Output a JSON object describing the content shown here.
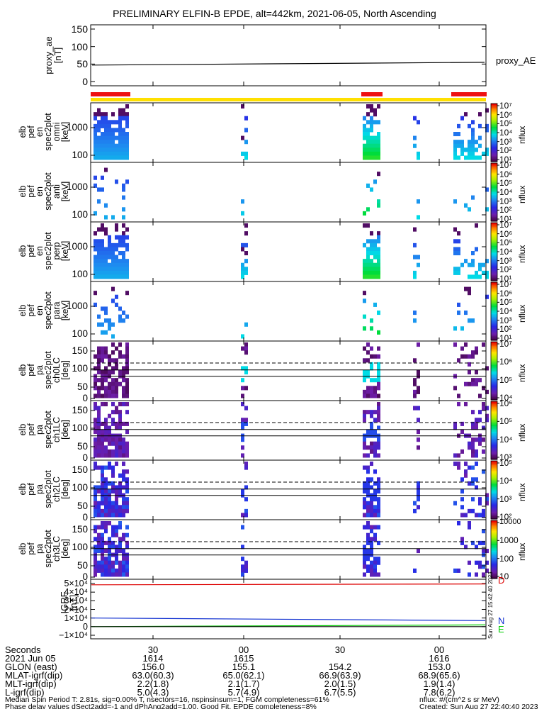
{
  "title": "PRELIMINARY ELFIN-B EPDE, alt=442km, 2021-06-05, North Ascending",
  "proxy_panel": {
    "ylabel_lines": [
      "proxy_ae",
      "[nT]"
    ],
    "yticks": [
      "150",
      "100",
      "50",
      "0"
    ],
    "legend": "proxy_AE",
    "ylim": [
      0,
      150
    ],
    "line_value_start": 47,
    "line_value_end": 55
  },
  "panels": [
    {
      "ylabel_lines": [
        "elb",
        "pef",
        "en",
        "spec2plot",
        "omni",
        "[keV]"
      ],
      "yticks": [
        "1000",
        "100"
      ],
      "cbar": "nflux"
    },
    {
      "ylabel_lines": [
        "elb",
        "pef",
        "en",
        "spec2plot",
        "anti",
        "[keV]"
      ],
      "yticks": [
        "1000",
        "100"
      ],
      "cbar": "nflux"
    },
    {
      "ylabel_lines": [
        "elb",
        "pef",
        "en",
        "spec2plot",
        "perp",
        "[keV]"
      ],
      "yticks": [
        "1000",
        "100"
      ],
      "cbar": "nflux"
    },
    {
      "ylabel_lines": [
        "elb",
        "pef",
        "en",
        "spec2plot",
        "para",
        "[keV]"
      ],
      "yticks": [
        "1000",
        "100"
      ],
      "cbar": "nflux"
    },
    {
      "ylabel_lines": [
        "elb",
        "pef",
        "pa",
        "spec2plot",
        "ch0LC",
        "[deg]"
      ],
      "yticks": [
        "150",
        "100",
        "50",
        "0"
      ],
      "cbar": "nflux"
    },
    {
      "ylabel_lines": [
        "elb",
        "pef",
        "pa",
        "spec2plot",
        "ch1LC",
        "[deg]"
      ],
      "yticks": [
        "150",
        "100",
        "50",
        "0"
      ],
      "cbar": "nflux"
    },
    {
      "ylabel_lines": [
        "elb",
        "pef",
        "pa",
        "spec2plot",
        "ch2LC",
        "[deg]"
      ],
      "yticks": [
        "150",
        "100",
        "50",
        "0"
      ],
      "cbar": "nflux"
    },
    {
      "ylabel_lines": [
        "elb",
        "pef",
        "pa",
        "spec2plot",
        "ch3LC",
        "[deg]"
      ],
      "yticks": [
        "150",
        "100",
        "50",
        "0"
      ],
      "cbar": "nflux"
    }
  ],
  "colorbars": [
    {
      "ticks": [
        "10⁷",
        "10⁶",
        "10⁵",
        "10⁴",
        "10³",
        "10²",
        "10¹"
      ]
    },
    {
      "ticks": [
        "10⁷",
        "10⁶",
        "10⁵",
        "10⁴",
        "10³",
        "10²",
        "10¹"
      ]
    },
    {
      "ticks": [
        "10⁷",
        "10⁶",
        "10⁵",
        "10⁴",
        "10³",
        "10²",
        "10¹"
      ]
    },
    {
      "ticks": [
        "10⁷",
        "10⁶",
        "10⁵",
        "10⁴",
        "10³",
        "10²",
        "10¹"
      ]
    },
    {
      "ticks": [
        "10⁷",
        "10⁶",
        "10⁵",
        "10⁴"
      ]
    },
    {
      "ticks": [
        "10⁶",
        "10⁵",
        "10⁴",
        "10³"
      ]
    },
    {
      "ticks": [
        "10⁵",
        "10⁴",
        "10³",
        "10²"
      ]
    },
    {
      "ticks": [
        "10000",
        "1000",
        "100",
        "10"
      ]
    }
  ],
  "igrf_panel": {
    "ylabel_lines": [
      "IGRF",
      "[nT]"
    ],
    "yticks": [
      "5×10⁴",
      "4×10⁴",
      "3×10⁴",
      "2×10⁴",
      "1×10⁴",
      "0",
      "−1×10⁴"
    ],
    "legend": {
      "d": "D",
      "n": "N",
      "e": "E"
    },
    "ylim": [
      -10000,
      50000
    ],
    "series": [
      {
        "label": "D",
        "color": "#dd0000",
        "start": 48500,
        "end": 49500
      },
      {
        "label": "N",
        "color": "#1030d0",
        "start": 10000,
        "end": 7000
      },
      {
        "label": "E",
        "color": "#00cc00",
        "start": 0,
        "end": 2000
      },
      {
        "label": "",
        "color": "#000000",
        "start": 0,
        "end": 0
      }
    ],
    "timestamp": "Sun Aug 27 15:42:40 2023"
  },
  "bars": {
    "red_color": "#ee1111",
    "yellow_color": "#ffe000"
  },
  "footer": {
    "row_labels": [
      "Seconds",
      "2021 Jun 05",
      "GLON (east)",
      "MLAT-igrf(dip)",
      "MLT-igrf(dip)",
      "L-igrf(dip)"
    ],
    "columns": [
      {
        "values": [
          "30",
          "1614",
          "156.0",
          "63.0(60.3)",
          "2.2(1.8)",
          "5.0(4.3)"
        ]
      },
      {
        "values": [
          "00",
          "1615",
          "155.1",
          "65.0(62.1)",
          "2.1(1.7)",
          "5.7(4.9)"
        ]
      },
      {
        "values": [
          "30",
          "",
          "154.2",
          "66.9(63.9)",
          "2.0(1.5)",
          "6.7(5.5)"
        ]
      },
      {
        "values": [
          "00",
          "1616",
          "153.0",
          "68.9(65.6)",
          "1.9(1.4)",
          "7.8(6.2)"
        ]
      }
    ],
    "note_line1": "Median Spin Period T: 2.81s, sig=0.00% T, nsectors=16, nspinsinsum=1, FGM completeness=61%",
    "note_line2": "Phase delay values dSect2add=-1 and dPhAng2add=1.00, Good Fit, EPDE completeness=8%",
    "units": "nflux: #/(cm^2 s sr MeV)",
    "created": "Created: Sun Aug 27 22:40:40 2023"
  },
  "chart_data": {
    "type": "heatmap",
    "title": "PRELIMINARY ELFIN-B EPDE, alt=442km, 2021-06-05, North Ascending",
    "x_axis": {
      "tick_labels": [
        "30",
        "00",
        "30",
        "00"
      ],
      "minute_labels": [
        "1614",
        "1615",
        "1616"
      ]
    },
    "proxy_ae": {
      "values_start_end": [
        47,
        55
      ],
      "ylim": [
        0,
        150
      ]
    },
    "pitch_angle_reference_lines_deg": {
      "solid": [
        70,
        90
      ],
      "dashed": [
        112
      ]
    },
    "colorbar_label": "nflux"
  }
}
